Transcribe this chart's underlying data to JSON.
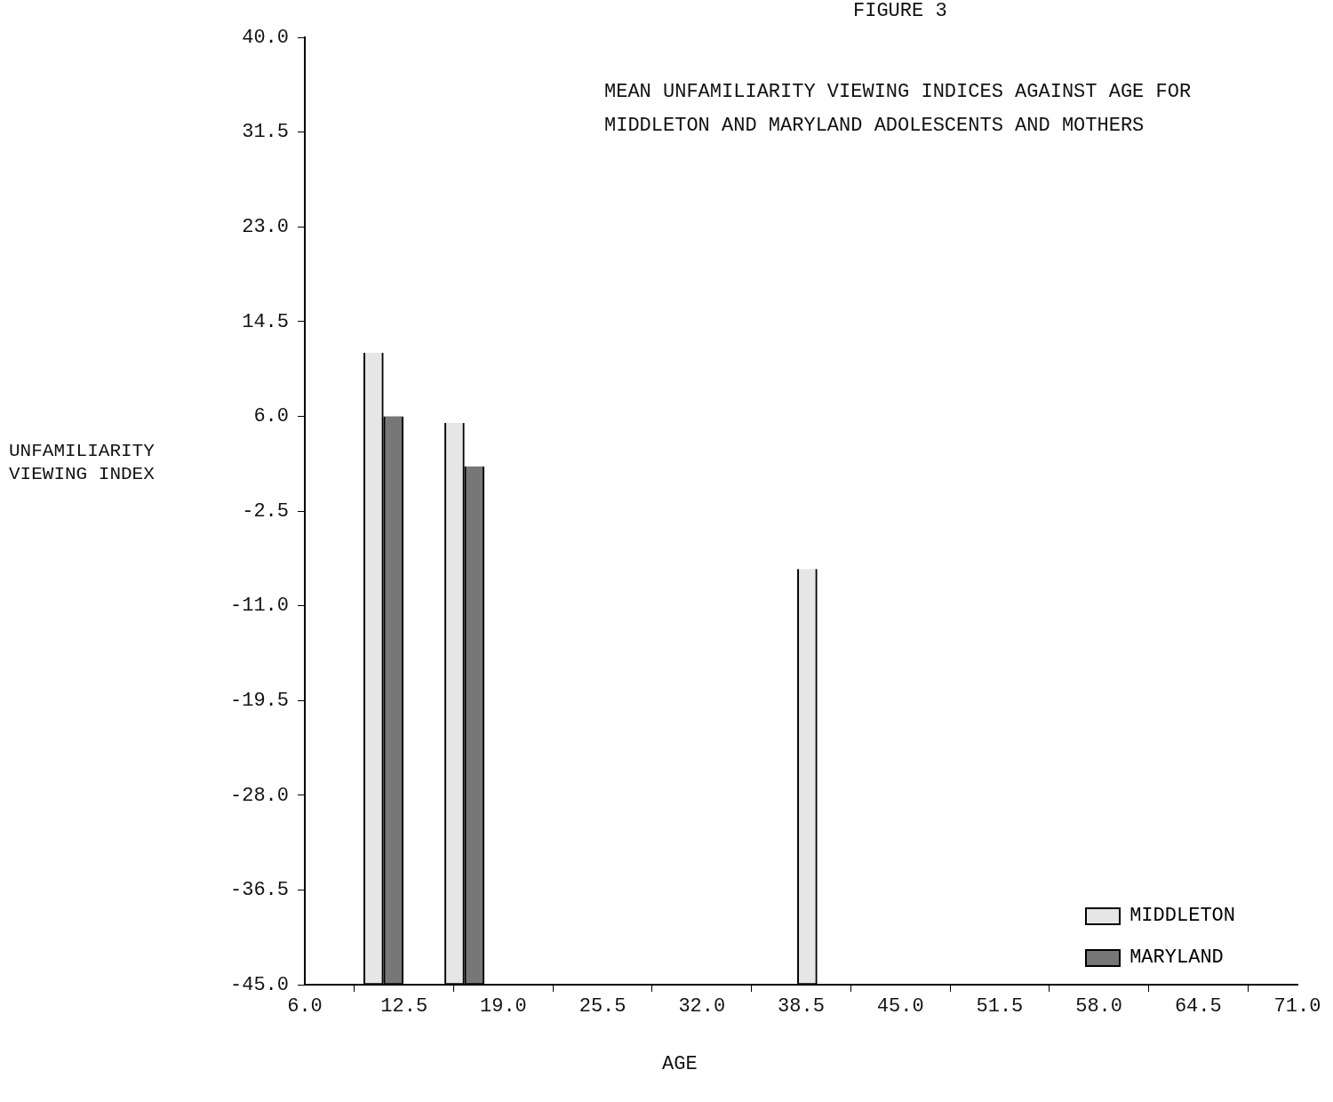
{
  "chart_data": {
    "type": "bar",
    "title": "FIGURE 3",
    "subtitle": "MEAN UNFAMILIARITY VIEWING INDICES AGAINST AGE FOR MIDDLETON AND MARYLAND ADOLESCENTS AND MOTHERS",
    "xlabel": "AGE",
    "ylabel": "UNFAMILIARITY VIEWING INDEX",
    "series": [
      {
        "name": "MIDDLETON",
        "color": "#e6e6e6",
        "x": [
          10.5,
          15.8,
          38.9
        ],
        "base": [
          -45,
          -45,
          -45
        ],
        "values": [
          56.7,
          50.4,
          37.3
        ]
      },
      {
        "name": "MARYLAND",
        "color": "#777777",
        "x": [
          11.8,
          17.1
        ],
        "base": [
          -45,
          -45
        ],
        "values": [
          51.0,
          46.5
        ]
      }
    ],
    "xlim": [
      6,
      71
    ],
    "xticks": [
      {
        "value": 6,
        "label": "6.0"
      },
      {
        "value": 12.5,
        "label": "12.5"
      },
      {
        "value": 19,
        "label": "19.0"
      },
      {
        "value": 25.5,
        "label": "25.5"
      },
      {
        "value": 32,
        "label": "32.0"
      },
      {
        "value": 38.5,
        "label": "38.5"
      },
      {
        "value": 45,
        "label": "45.0"
      },
      {
        "value": 51.5,
        "label": "51.5"
      },
      {
        "value": 58,
        "label": "58.0"
      },
      {
        "value": 64.5,
        "label": "64.5"
      },
      {
        "value": 71,
        "label": "71.0"
      }
    ],
    "ylim": [
      -45,
      40
    ],
    "yticks": [
      {
        "value": -45,
        "label": "-45.0"
      },
      {
        "value": -36.5,
        "label": "-36.5"
      },
      {
        "value": -28,
        "label": "-28.0"
      },
      {
        "value": -19.5,
        "label": "-19.5"
      },
      {
        "value": -11,
        "label": "-11.0"
      },
      {
        "value": -2.5,
        "label": "-2.5"
      },
      {
        "value": 6,
        "label": "6.0"
      },
      {
        "value": 14.5,
        "label": "14.5"
      },
      {
        "value": 23,
        "label": "23.0"
      },
      {
        "value": 31.5,
        "label": "31.5"
      },
      {
        "value": 40,
        "label": "40.0"
      }
    ],
    "legend": "bottom right"
  }
}
